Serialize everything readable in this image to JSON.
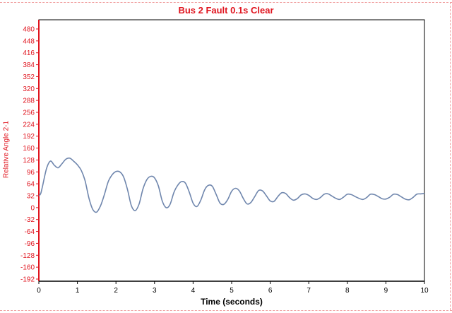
{
  "chart_data": {
    "type": "line",
    "title": "Bus 2 Fault 0.1s Clear",
    "xlabel": "Time (seconds)",
    "ylabel": "Relative Angle 2-1",
    "xlim": [
      0,
      10
    ],
    "ylim": [
      -200,
      500
    ],
    "x_ticks": [
      0,
      1,
      2,
      3,
      4,
      5,
      6,
      7,
      8,
      9,
      10
    ],
    "y_ticks": [
      480,
      448,
      416,
      384,
      352,
      320,
      288,
      256,
      224,
      192,
      160,
      128,
      96,
      64,
      32,
      0,
      -32,
      -64,
      -96,
      -128,
      -160,
      -192
    ],
    "grid": false,
    "legend": "none",
    "series": [
      {
        "color": "#6f86ad",
        "x": [
          0,
          0.05,
          0.1,
          0.2,
          0.3,
          0.4,
          0.5,
          0.6,
          0.7,
          0.8,
          0.9,
          1.0,
          1.1,
          1.2,
          1.3,
          1.4,
          1.5,
          1.6,
          1.7,
          1.8,
          1.9,
          2.0,
          2.1,
          2.2,
          2.3,
          2.4,
          2.5,
          2.6,
          2.7,
          2.8,
          2.9,
          3.0,
          3.1,
          3.2,
          3.3,
          3.4,
          3.5,
          3.6,
          3.7,
          3.8,
          3.9,
          4.0,
          4.1,
          4.2,
          4.3,
          4.4,
          4.5,
          4.6,
          4.7,
          4.8,
          4.9,
          5.0,
          5.1,
          5.2,
          5.3,
          5.4,
          5.5,
          5.6,
          5.7,
          5.8,
          5.9,
          6.0,
          6.1,
          6.2,
          6.3,
          6.4,
          6.5,
          6.6,
          6.7,
          6.8,
          6.9,
          7.0,
          7.1,
          7.2,
          7.3,
          7.4,
          7.5,
          7.6,
          7.7,
          7.8,
          7.9,
          8.0,
          8.1,
          8.2,
          8.3,
          8.4,
          8.5,
          8.6,
          8.7,
          8.8,
          8.9,
          9.0,
          9.1,
          9.2,
          9.3,
          9.4,
          9.5,
          9.6,
          9.7,
          9.8,
          9.9,
          10.0
        ],
        "values": [
          32,
          38,
          60,
          105,
          125,
          114,
          107,
          118,
          130,
          133,
          125,
          115,
          100,
          72,
          25,
          -5,
          -12,
          5,
          35,
          70,
          88,
          97,
          96,
          82,
          48,
          5,
          -8,
          10,
          50,
          75,
          84,
          80,
          58,
          18,
          0,
          8,
          40,
          60,
          70,
          66,
          42,
          12,
          3,
          20,
          48,
          60,
          57,
          35,
          12,
          9,
          22,
          44,
          52,
          45,
          25,
          10,
          14,
          30,
          46,
          45,
          32,
          18,
          17,
          30,
          40,
          38,
          27,
          20,
          24,
          34,
          37,
          33,
          25,
          22,
          27,
          36,
          37,
          31,
          25,
          22,
          28,
          36,
          35,
          30,
          25,
          22,
          27,
          36,
          35,
          30,
          24,
          23,
          28,
          36,
          35,
          29,
          23,
          21,
          27,
          36,
          37,
          38
        ]
      }
    ]
  },
  "colors": {
    "title": "#e0141e",
    "y_axis": "#e0141e",
    "x_axis": "#000000",
    "line": "#6f86ad"
  }
}
